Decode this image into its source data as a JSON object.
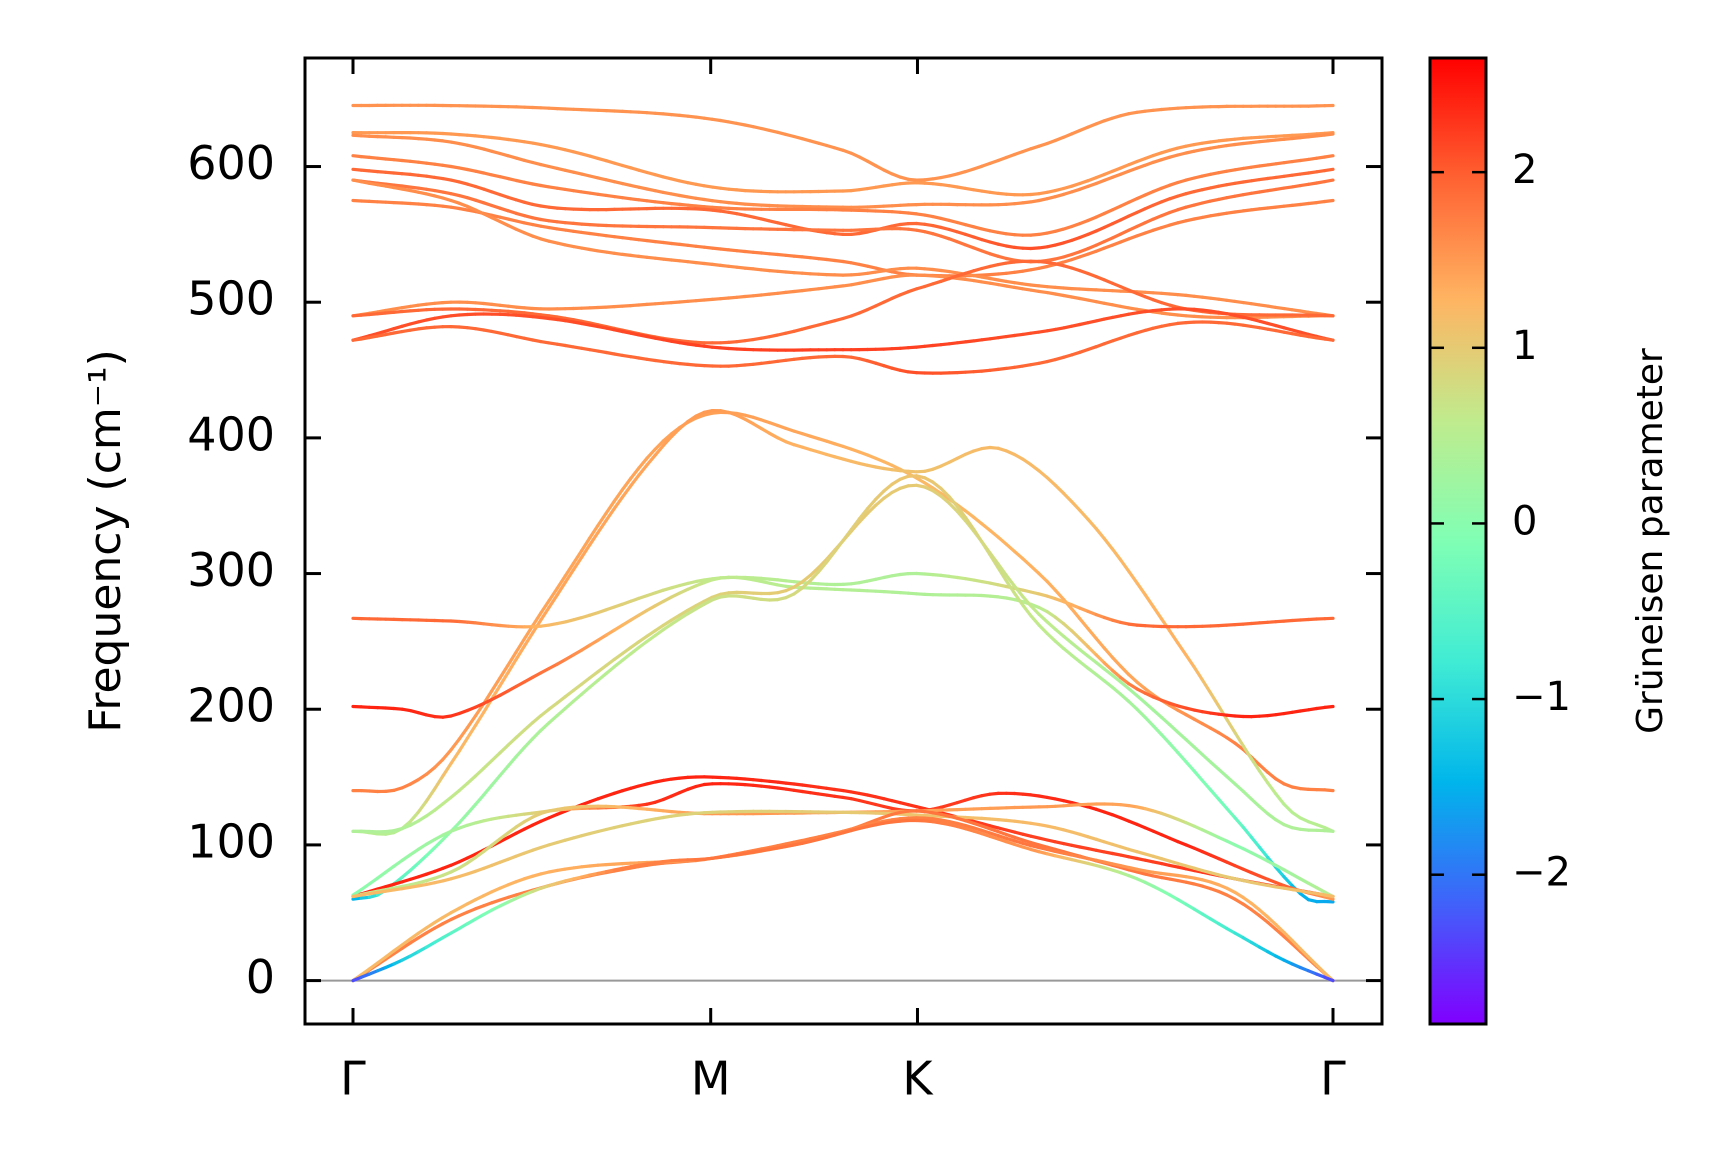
{
  "chart_data": {
    "type": "line",
    "title": "",
    "xlabel": "",
    "ylabel": "Frequency (cm⁻¹)",
    "ylim": [
      -32,
      680
    ],
    "yticks": [
      0,
      100,
      200,
      300,
      400,
      500,
      600
    ],
    "xticks": [
      {
        "label": "Γ",
        "x": 0
      },
      {
        "label": "M",
        "x": 0.365
      },
      {
        "label": "K",
        "x": 0.576
      },
      {
        "label": "Γ",
        "x": 1
      }
    ],
    "colorbar": {
      "label": "Grüneisen parameter",
      "range": [
        -2.85,
        2.65
      ],
      "ticks": [
        -2,
        -1,
        0,
        1,
        2
      ],
      "tick_labels": [
        "−2",
        "−1",
        "0",
        "1",
        "2"
      ],
      "colormap": "rainbow"
    },
    "series": [
      {
        "x": [
          0,
          0.09,
          0.2,
          0.365,
          0.5,
          0.576,
          0.7,
          0.8,
          1
        ],
        "values": [
          645,
          645,
          643,
          635,
          612,
          590,
          615,
          640,
          645
        ],
        "gamma": [
          1.55,
          1.55,
          1.55,
          1.55,
          1.55,
          1.55,
          1.55,
          1.55,
          1.55
        ]
      },
      {
        "x": [
          0,
          0.1,
          0.2,
          0.365,
          0.5,
          0.576,
          0.7,
          0.85,
          1
        ],
        "values": [
          625,
          624,
          615,
          585,
          582,
          588,
          580,
          615,
          625
        ],
        "gamma": [
          1.5,
          1.5,
          1.5,
          1.5,
          1.5,
          1.5,
          1.5,
          1.5,
          1.5
        ]
      },
      {
        "x": [
          0,
          0.1,
          0.2,
          0.365,
          0.5,
          0.576,
          0.7,
          0.85,
          1
        ],
        "values": [
          623,
          618,
          600,
          575,
          570,
          572,
          575,
          610,
          624
        ],
        "gamma": [
          1.6,
          1.6,
          1.6,
          1.6,
          1.6,
          1.6,
          1.6,
          1.6,
          1.6
        ]
      },
      {
        "x": [
          0,
          0.1,
          0.2,
          0.365,
          0.5,
          0.576,
          0.7,
          0.85,
          1
        ],
        "values": [
          608,
          600,
          585,
          570,
          568,
          565,
          550,
          590,
          608
        ],
        "gamma": [
          1.7,
          1.7,
          1.7,
          1.7,
          1.7,
          1.7,
          1.7,
          1.7,
          1.7
        ]
      },
      {
        "x": [
          0,
          0.1,
          0.2,
          0.365,
          0.5,
          0.576,
          0.7,
          0.85,
          1
        ],
        "values": [
          598,
          590,
          570,
          568,
          550,
          558,
          540,
          580,
          598
        ],
        "gamma": [
          1.9,
          1.9,
          1.9,
          1.9,
          1.9,
          1.9,
          2.1,
          1.9,
          1.9
        ]
      },
      {
        "x": [
          0,
          0.1,
          0.2,
          0.365,
          0.5,
          0.576,
          0.7,
          0.85,
          1
        ],
        "values": [
          590,
          580,
          560,
          555,
          553,
          553,
          530,
          570,
          590
        ],
        "gamma": [
          1.8,
          1.8,
          1.8,
          1.8,
          1.8,
          1.8,
          1.8,
          1.8,
          1.8
        ]
      },
      {
        "x": [
          0,
          0.1,
          0.2,
          0.365,
          0.5,
          0.576,
          0.7,
          0.85,
          1
        ],
        "values": [
          575,
          570,
          555,
          540,
          530,
          520,
          525,
          560,
          575
        ],
        "gamma": [
          1.7,
          1.7,
          1.7,
          1.7,
          1.7,
          1.7,
          1.7,
          1.7,
          1.7
        ]
      },
      {
        "x": [
          0,
          0.1,
          0.2,
          0.365,
          0.5,
          0.576,
          0.7,
          0.85,
          1
        ],
        "values": [
          590,
          575,
          545,
          528,
          520,
          525,
          512,
          505,
          490
        ],
        "gamma": [
          1.6,
          1.6,
          1.6,
          1.6,
          1.6,
          1.6,
          1.6,
          1.6,
          1.6
        ]
      },
      {
        "x": [
          0,
          0.1,
          0.2,
          0.365,
          0.5,
          0.576,
          0.7,
          0.85,
          1
        ],
        "values": [
          490,
          500,
          495,
          502,
          512,
          520,
          508,
          490,
          490
        ],
        "gamma": [
          1.6,
          1.6,
          1.6,
          1.6,
          1.6,
          1.6,
          1.6,
          1.6,
          1.6
        ]
      },
      {
        "x": [
          0,
          0.1,
          0.2,
          0.365,
          0.5,
          0.576,
          0.7,
          0.85,
          1
        ],
        "values": [
          490,
          495,
          490,
          470,
          488,
          510,
          530,
          495,
          490
        ],
        "gamma": [
          1.9,
          1.9,
          1.9,
          1.9,
          1.9,
          1.9,
          1.9,
          1.9,
          1.9
        ]
      },
      {
        "x": [
          0,
          0.1,
          0.2,
          0.365,
          0.5,
          0.576,
          0.7,
          0.85,
          1
        ],
        "values": [
          472,
          490,
          488,
          467,
          465,
          467,
          478,
          495,
          472
        ],
        "gamma": [
          2.1,
          2.1,
          2.1,
          2.2,
          2.2,
          2.2,
          2.1,
          2.1,
          2.1
        ]
      },
      {
        "x": [
          0,
          0.1,
          0.2,
          0.365,
          0.5,
          0.576,
          0.7,
          0.85,
          1
        ],
        "values": [
          472,
          482,
          470,
          453,
          460,
          448,
          455,
          485,
          472
        ],
        "gamma": [
          1.9,
          1.9,
          1.9,
          1.9,
          1.9,
          2.1,
          1.9,
          1.9,
          1.9
        ]
      },
      {
        "x": [
          0,
          0.05,
          0.1,
          0.2,
          0.3,
          0.365,
          0.45,
          0.576,
          0.7,
          0.8,
          0.9,
          0.95,
          1
        ],
        "values": [
          140,
          142,
          170,
          280,
          385,
          418,
          405,
          370,
          300,
          220,
          175,
          145,
          140
        ],
        "gamma": [
          1.7,
          1.7,
          1.5,
          1.4,
          1.4,
          1.45,
          1.4,
          1.2,
          1.3,
          1.4,
          1.7,
          1.7,
          1.7
        ]
      },
      {
        "x": [
          0,
          0.05,
          0.1,
          0.2,
          0.3,
          0.365,
          0.45,
          0.576,
          0.66,
          0.75,
          0.85,
          0.95,
          1
        ],
        "values": [
          110,
          112,
          160,
          275,
          380,
          420,
          395,
          375,
          392,
          340,
          240,
          130,
          110
        ],
        "gamma": [
          0.5,
          0.5,
          1.2,
          1.4,
          1.4,
          1.5,
          1.3,
          1.1,
          1.2,
          1.2,
          1.3,
          0.5,
          0.5
        ]
      },
      {
        "x": [
          0,
          0.1,
          0.2,
          0.365,
          0.5,
          0.576,
          0.7,
          0.8,
          1
        ],
        "values": [
          267,
          265,
          262,
          296,
          292,
          300,
          285,
          262,
          267
        ],
        "gamma": [
          1.9,
          1.9,
          1.2,
          0.6,
          0.4,
          0.4,
          1.0,
          1.9,
          1.9
        ]
      },
      {
        "x": [
          0,
          0.05,
          0.1,
          0.2,
          0.365,
          0.45,
          0.576,
          0.7,
          0.8,
          0.9,
          1
        ],
        "values": [
          202,
          200,
          195,
          230,
          295,
          290,
          285,
          275,
          215,
          195,
          202
        ],
        "gamma": [
          2.4,
          2.4,
          2.3,
          1.8,
          0.6,
          0.5,
          0.4,
          0.5,
          1.8,
          2.4,
          2.4
        ]
      },
      {
        "x": [
          0,
          0.05,
          0.1,
          0.2,
          0.365,
          0.45,
          0.576,
          0.7,
          0.8,
          0.9,
          0.95,
          1
        ],
        "values": [
          110,
          112,
          135,
          200,
          282,
          290,
          365,
          270,
          210,
          145,
          115,
          110
        ],
        "gamma": [
          0.4,
          0.4,
          0.6,
          0.8,
          0.9,
          1.0,
          1.0,
          0.6,
          0.3,
          0.3,
          0.4,
          0.4
        ]
      },
      {
        "x": [
          0,
          0.03,
          0.1,
          0.2,
          0.365,
          0.45,
          0.576,
          0.7,
          0.8,
          0.9,
          0.97,
          1
        ],
        "values": [
          60,
          65,
          110,
          190,
          280,
          285,
          372,
          262,
          200,
          120,
          62,
          58
        ],
        "gamma": [
          -1.6,
          -0.7,
          0.1,
          0.4,
          0.7,
          0.8,
          1.1,
          0.6,
          0.3,
          -0.3,
          -1.5,
          -1.6
        ]
      },
      {
        "x": [
          0,
          0.1,
          0.2,
          0.3,
          0.365,
          0.5,
          0.576,
          0.7,
          0.8,
          0.9,
          1
        ],
        "values": [
          62,
          85,
          120,
          145,
          150,
          140,
          128,
          105,
          90,
          75,
          62
        ],
        "gamma": [
          2.4,
          2.4,
          2.4,
          2.4,
          2.4,
          2.3,
          2.3,
          2.2,
          2.2,
          2.3,
          2.4
        ]
      },
      {
        "x": [
          0,
          0.1,
          0.2,
          0.3,
          0.365,
          0.5,
          0.576,
          0.66,
          0.75,
          0.85,
          0.95,
          1
        ],
        "values": [
          63,
          110,
          125,
          130,
          145,
          135,
          125,
          138,
          128,
          100,
          70,
          60
        ],
        "gamma": [
          0.0,
          0.3,
          1.0,
          2.3,
          2.4,
          2.3,
          2.2,
          2.3,
          2.4,
          2.4,
          2.0,
          1.5
        ]
      },
      {
        "x": [
          0,
          0.1,
          0.2,
          0.365,
          0.5,
          0.576,
          0.7,
          0.8,
          0.9,
          1
        ],
        "values": [
          62,
          80,
          125,
          123,
          124,
          125,
          128,
          128,
          100,
          62
        ],
        "gamma": [
          0.5,
          0.7,
          1.0,
          1.5,
          1.5,
          1.4,
          1.5,
          1.4,
          0.0,
          0.5
        ]
      },
      {
        "x": [
          0,
          0.1,
          0.2,
          0.3,
          0.365,
          0.5,
          0.576,
          0.7,
          0.8,
          0.9,
          1
        ],
        "values": [
          62,
          75,
          100,
          118,
          124,
          124,
          122,
          115,
          95,
          75,
          62
        ],
        "gamma": [
          1.2,
          1.2,
          1.0,
          0.9,
          0.9,
          1.0,
          1.1,
          1.2,
          1.1,
          1.0,
          1.2
        ]
      },
      {
        "x": [
          0,
          0.1,
          0.2,
          0.3,
          0.365,
          0.5,
          0.576,
          0.7,
          0.8,
          0.9,
          1
        ],
        "values": [
          0,
          45,
          70,
          85,
          90,
          110,
          125,
          100,
          80,
          60,
          0
        ],
        "gamma": [
          1.7,
          1.7,
          1.7,
          1.7,
          1.7,
          1.7,
          1.8,
          1.8,
          1.8,
          1.7,
          1.7
        ]
      },
      {
        "x": [
          0,
          0.1,
          0.2,
          0.365,
          0.45,
          0.576,
          0.7,
          0.8,
          0.9,
          1
        ],
        "values": [
          0,
          50,
          80,
          90,
          100,
          120,
          98,
          82,
          65,
          0
        ],
        "gamma": [
          1.2,
          1.2,
          1.3,
          1.5,
          1.6,
          1.7,
          1.8,
          1.5,
          1.3,
          1.2
        ]
      },
      {
        "x": [
          0,
          0.05,
          0.1,
          0.15,
          0.2,
          0.27,
          0.32,
          0.365,
          0.45,
          0.576,
          0.7,
          0.8,
          0.9,
          0.95,
          1
        ],
        "values": [
          0,
          15,
          35,
          55,
          70,
          82,
          88,
          90,
          100,
          118,
          95,
          75,
          35,
          15,
          0
        ],
        "gamma": [
          -2.4,
          -1.2,
          -0.5,
          0.0,
          1.0,
          1.7,
          1.7,
          1.8,
          1.8,
          1.8,
          1.5,
          0.3,
          -0.8,
          -1.5,
          -2.4
        ]
      }
    ]
  }
}
